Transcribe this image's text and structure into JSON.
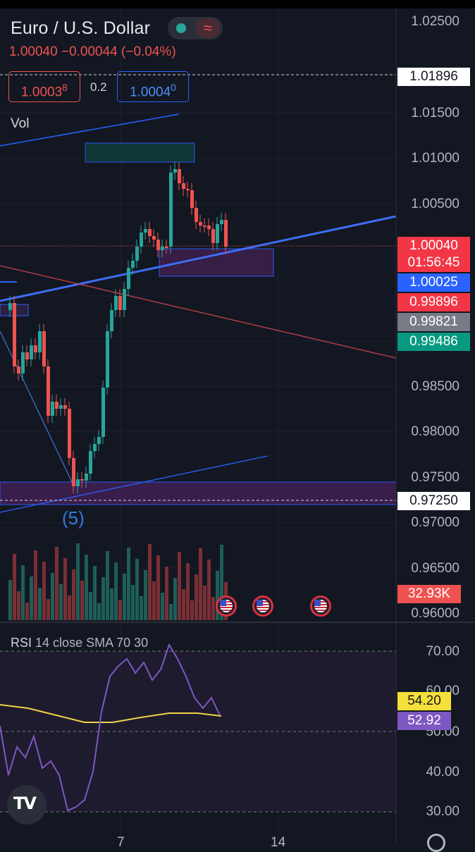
{
  "header": {
    "symbol": "Euro / U.S. Dollar",
    "last": "1.00040",
    "change": "−0.00044 (−0.04%)",
    "sell_main": "1.0003",
    "sell_small": "8",
    "spread": "0.2",
    "buy_main": "1.0004",
    "buy_small": "0"
  },
  "main_pane": {
    "indicator_label": "Vol",
    "wave_label": "(5)",
    "price_axis": [
      "1.02500",
      "1.01500",
      "1.01000",
      "1.00500",
      "0.98500",
      "0.98000",
      "0.97500",
      "0.97000",
      "0.96500",
      "0.96000"
    ],
    "price_tags": {
      "crosshair_top": "1.01896",
      "current_price": "1.00040",
      "countdown": "01:56:45",
      "blue_line": "1.00025",
      "red_line": "0.99896",
      "grey_level": "0.99821",
      "green_level": "0.99486",
      "crosshair_bottom": "0.97250",
      "volume": "32.93K"
    }
  },
  "rsi_pane": {
    "name": "RSI",
    "params": "14 close SMA 70 30",
    "axis": [
      "70.00",
      "50.00",
      "40.00",
      "30.00"
    ],
    "hidden_axis": "60.00",
    "rsi_value": "52.92",
    "sma_value": "54.20"
  },
  "time_axis": [
    "7",
    "14"
  ],
  "colors": {
    "background": "#131722",
    "up": "#26a69a",
    "down": "#ef5350",
    "trendline": "#2962ff",
    "rsi_line": "#7e57c2",
    "rsi_sma": "#f0d34a"
  },
  "icons": [
    "tradingview-logo",
    "us-flag-event",
    "settings-gear"
  ]
}
